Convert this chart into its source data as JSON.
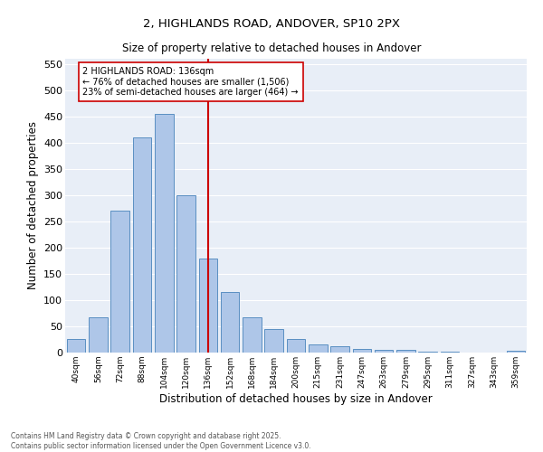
{
  "title1": "2, HIGHLANDS ROAD, ANDOVER, SP10 2PX",
  "title2": "Size of property relative to detached houses in Andover",
  "xlabel": "Distribution of detached houses by size in Andover",
  "ylabel": "Number of detached properties",
  "categories": [
    "40sqm",
    "56sqm",
    "72sqm",
    "88sqm",
    "104sqm",
    "120sqm",
    "136sqm",
    "152sqm",
    "168sqm",
    "184sqm",
    "200sqm",
    "215sqm",
    "231sqm",
    "247sqm",
    "263sqm",
    "279sqm",
    "295sqm",
    "311sqm",
    "327sqm",
    "343sqm",
    "359sqm"
  ],
  "values": [
    25,
    68,
    270,
    410,
    455,
    300,
    180,
    115,
    68,
    44,
    26,
    16,
    12,
    7,
    5,
    5,
    2,
    1,
    0,
    0,
    4
  ],
  "bar_color": "#aec6e8",
  "bar_edge_color": "#5a8fc2",
  "vline_x_index": 6,
  "vline_color": "#cc0000",
  "annotation_text": "2 HIGHLANDS ROAD: 136sqm\n← 76% of detached houses are smaller (1,506)\n23% of semi-detached houses are larger (464) →",
  "annotation_box_color": "#ffffff",
  "annotation_box_edge": "#cc0000",
  "ylim": [
    0,
    560
  ],
  "yticks": [
    0,
    50,
    100,
    150,
    200,
    250,
    300,
    350,
    400,
    450,
    500,
    550
  ],
  "bg_color": "#e8eef7",
  "footnote": "Contains HM Land Registry data © Crown copyright and database right 2025.\nContains public sector information licensed under the Open Government Licence v3.0."
}
